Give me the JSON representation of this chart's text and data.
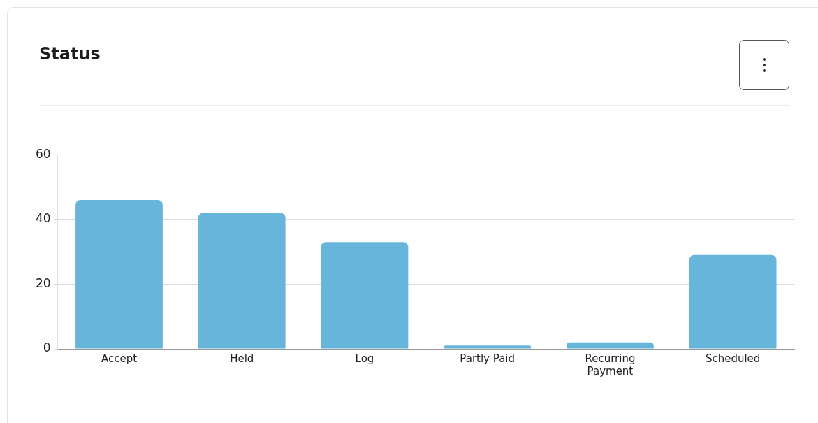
{
  "chart_data": {
    "type": "bar",
    "title": "Status",
    "categories": [
      "Accept",
      "Held",
      "Log",
      "Partly Paid",
      "Recurring Payment",
      "Scheduled"
    ],
    "values": [
      46,
      42,
      33,
      1,
      2,
      29
    ],
    "color": "#67b5db",
    "ylim": [
      0,
      60
    ],
    "yticks": [
      0,
      20,
      40,
      60
    ],
    "grid": "y"
  }
}
